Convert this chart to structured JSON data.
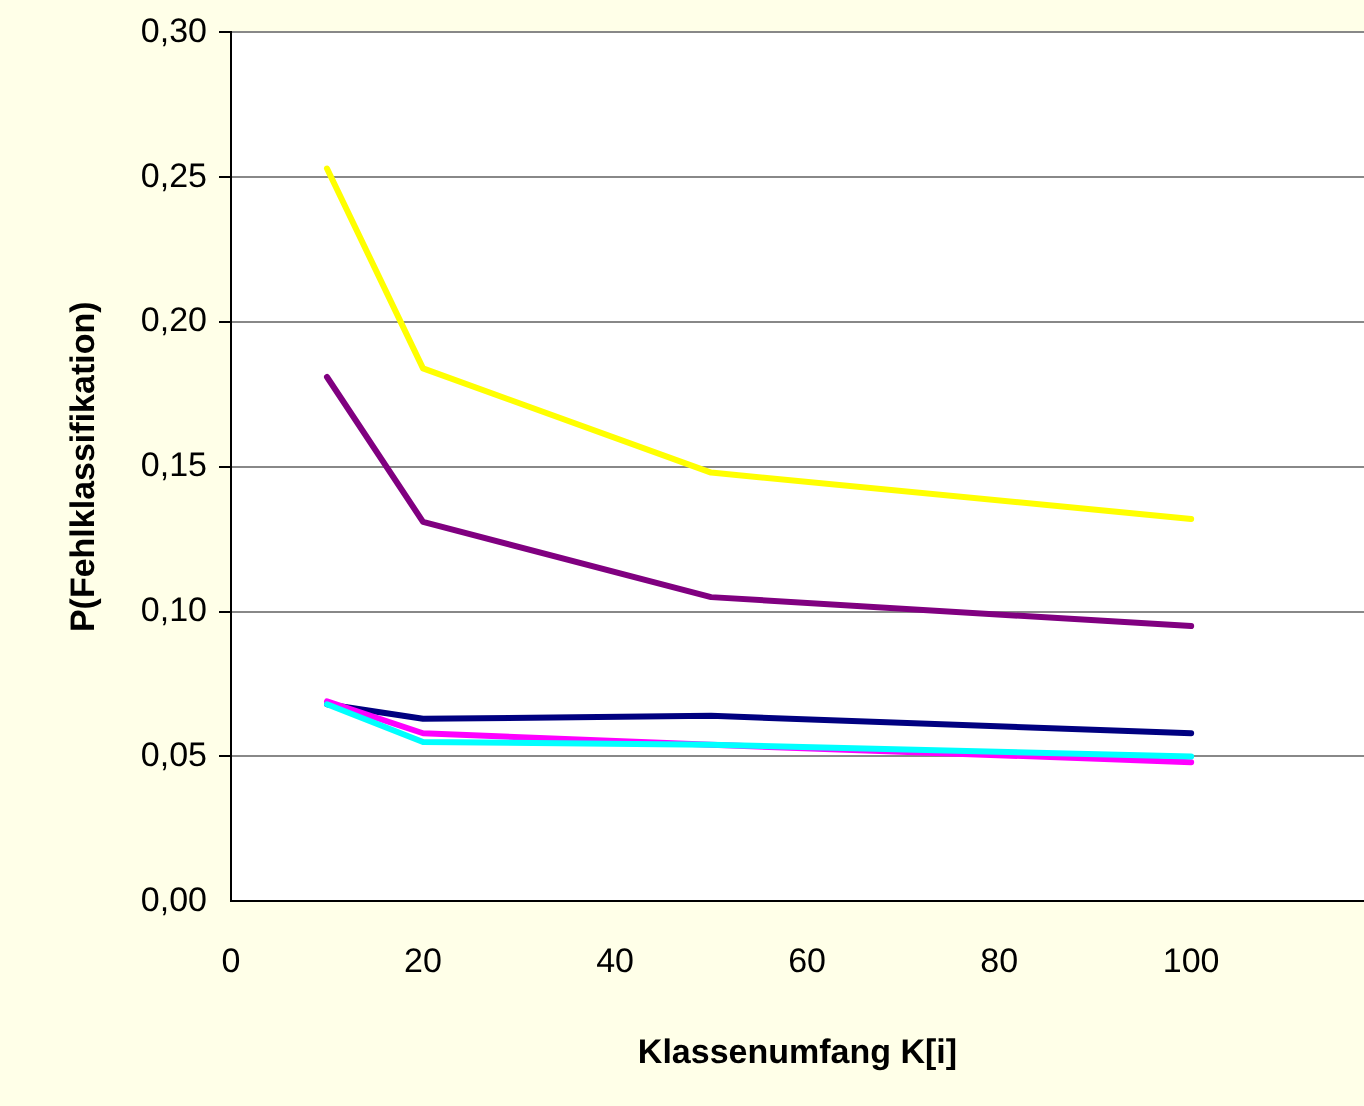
{
  "chart_data": {
    "type": "line",
    "xlabel": "Klassenumfang K[i]",
    "ylabel": "P(Fehlklassifikation)",
    "x": [
      10,
      20,
      50,
      100
    ],
    "series": [
      {
        "color": "#ffff00",
        "values": [
          0.253,
          0.184,
          0.148,
          0.132
        ]
      },
      {
        "color": "#800080",
        "values": [
          0.181,
          0.131,
          0.105,
          0.095
        ]
      },
      {
        "color": "#000080",
        "values": [
          0.068,
          0.063,
          0.064,
          0.058
        ]
      },
      {
        "color": "#ff00ff",
        "values": [
          0.069,
          0.058,
          0.054,
          0.048
        ]
      },
      {
        "color": "#00ffff",
        "values": [
          0.068,
          0.055,
          0.054,
          0.05
        ]
      }
    ],
    "xlim": [
      0,
      118
    ],
    "xticks": [
      0,
      20,
      40,
      60,
      80,
      100
    ],
    "ylim": [
      0,
      0.3
    ],
    "yticks": [
      {
        "value": 0,
        "label": "0,00"
      },
      {
        "value": 0.05,
        "label": "0,05"
      },
      {
        "value": 0.1,
        "label": "0,10"
      },
      {
        "value": 0.15,
        "label": "0,15"
      },
      {
        "value": 0.2,
        "label": "0,20"
      },
      {
        "value": 0.25,
        "label": "0,25"
      },
      {
        "value": 0.3,
        "label": "0,30"
      }
    ],
    "grid": "y",
    "legend": false,
    "marker": "none",
    "line_style": "solid"
  }
}
